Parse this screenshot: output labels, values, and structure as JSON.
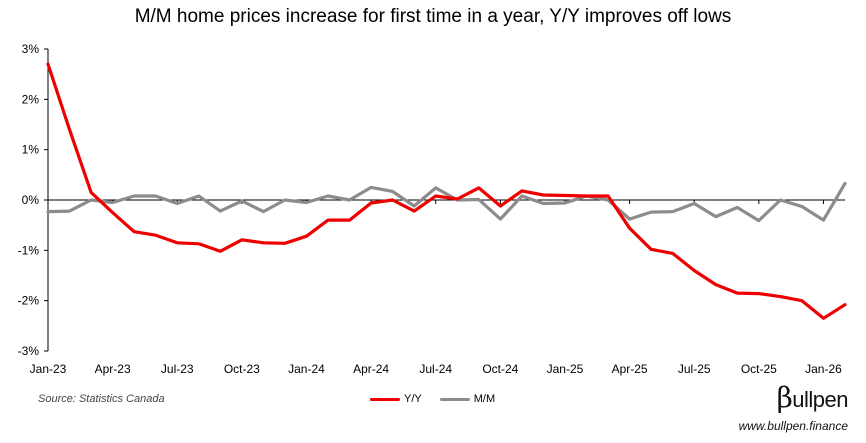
{
  "header": {
    "title": "M/M home prices increase for first time in a year, Y/Y improves off lows"
  },
  "footer": {
    "source": "Source: Statistics Canada",
    "brand": "ullpen",
    "brand_initial": "β",
    "website": "www.bullpen.finance"
  },
  "colors": {
    "yy": "#ee0000",
    "mm": "#8c8c8c",
    "axis": "#000000",
    "grid": "#d9d9d9"
  },
  "chart_data": {
    "type": "line",
    "title": "M/M home prices increase for first time in a year, Y/Y improves off lows",
    "xlabel": "",
    "ylabel": "",
    "ylim": [
      -3,
      3
    ],
    "yticks": [
      3,
      2,
      1,
      0,
      -1,
      -2,
      -3
    ],
    "ytick_labels": [
      "3%",
      "2%",
      "1%",
      "0%",
      "-1%",
      "-2%",
      "-3%"
    ],
    "xtick_labels": [
      "Jan-23",
      "Apr-23",
      "Jul-23",
      "Oct-23",
      "Jan-24",
      "Apr-24",
      "Jul-24",
      "Oct-24",
      "Jan-25",
      "Apr-25",
      "Jul-25",
      "Oct-25",
      "Jan-26"
    ],
    "xtick_every": 3,
    "legend_position": "bottom-center",
    "series": [
      {
        "name": "Y/Y",
        "values": [
          2.7,
          1.4,
          0.15,
          -0.25,
          -0.63,
          -0.7,
          -0.85,
          -0.87,
          -1.02,
          -0.79,
          -0.85,
          -0.86,
          -0.72,
          -0.4,
          -0.4,
          -0.06,
          0.0,
          -0.22,
          0.08,
          0.02,
          0.24,
          -0.12,
          0.18,
          0.1,
          0.09,
          0.08,
          0.08,
          -0.56,
          -0.98,
          -1.06,
          -1.4,
          -1.68,
          -1.85,
          -1.86,
          -1.92,
          -2.0,
          -2.35,
          -2.08
        ]
      },
      {
        "name": "M/M",
        "values": [
          -0.23,
          -0.22,
          0.0,
          -0.05,
          0.08,
          0.08,
          -0.07,
          0.08,
          -0.22,
          -0.02,
          -0.23,
          0.0,
          -0.05,
          0.08,
          0.0,
          0.25,
          0.17,
          -0.12,
          0.24,
          0.0,
          0.01,
          -0.38,
          0.08,
          -0.07,
          -0.06,
          0.08,
          0.0,
          -0.38,
          -0.24,
          -0.23,
          -0.07,
          -0.33,
          -0.15,
          -0.41,
          0.0,
          -0.13,
          -0.4,
          0.33
        ]
      }
    ]
  }
}
